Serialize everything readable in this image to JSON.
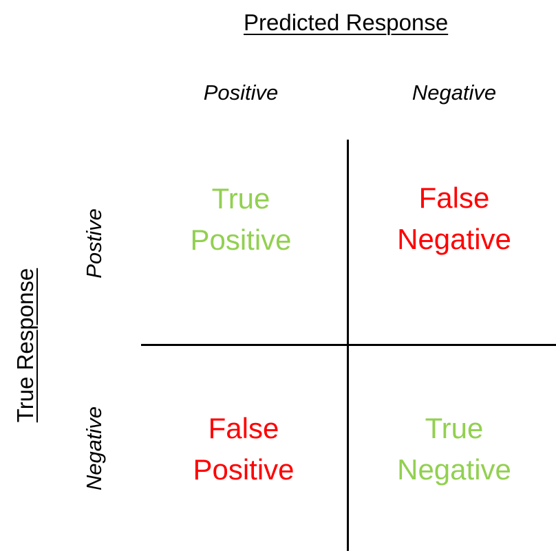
{
  "predicted_title": "Predicted Response",
  "true_title": "True Response",
  "columns": {
    "positive": "Positive",
    "negative": "Negative"
  },
  "rows": {
    "positive": "Postive",
    "negative": "Negative"
  },
  "cells": {
    "true_positive": {
      "line1": "True",
      "line2": "Positive",
      "color": "#92d050"
    },
    "false_negative": {
      "line1": "False",
      "line2": "Negative",
      "color": "#ff0000"
    },
    "false_positive": {
      "line1": "False",
      "line2": "Positive",
      "color": "#ff0000"
    },
    "true_negative": {
      "line1": "True",
      "line2": "Negative",
      "color": "#92d050"
    }
  }
}
